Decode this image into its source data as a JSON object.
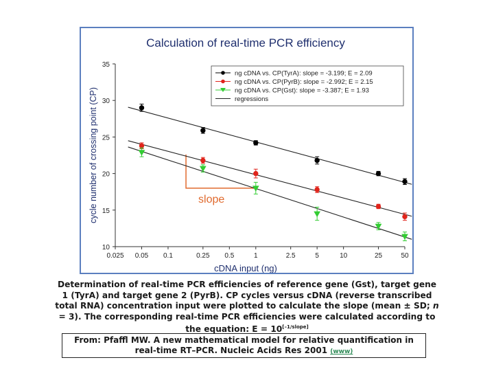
{
  "chart_data": {
    "type": "scatter",
    "title": "Calculation of real-time PCR efficiency",
    "xlabel": "cDNA input (ng)",
    "ylabel": "cycle number of crossing point (CP)",
    "x_scale": "log",
    "xlim": [
      0.025,
      50
    ],
    "ylim": [
      10,
      35
    ],
    "x_tick_labels": [
      "0.025",
      "0.05",
      "0.1",
      "0.25",
      "0.5",
      "1",
      "2.5",
      "5",
      "10",
      "25",
      "50"
    ],
    "y_tick_labels": [
      "10",
      "15",
      "20",
      "25",
      "30",
      "35"
    ],
    "legend_position": "top-right",
    "series": [
      {
        "name": "ng cDNA vs. CP(TyrA): slope = -3.199; E = 2.09",
        "color": "#000000",
        "marker": "circle",
        "x": [
          0.05,
          0.25,
          1,
          5,
          25,
          50
        ],
        "y": [
          29.0,
          25.9,
          24.2,
          21.8,
          20.0,
          18.9
        ],
        "err": [
          0.5,
          0.4,
          0.3,
          0.5,
          0.3,
          0.4
        ]
      },
      {
        "name": "ng cDNA vs. CP(PyrB): slope = -2.992; E = 2.15",
        "color": "#e0241b",
        "marker": "circle",
        "x": [
          0.05,
          0.25,
          1,
          5,
          25,
          50
        ],
        "y": [
          23.8,
          21.8,
          20.0,
          17.8,
          15.5,
          14.1
        ],
        "err": [
          0.4,
          0.4,
          0.6,
          0.4,
          0.3,
          0.5
        ]
      },
      {
        "name": "ng cDNA vs. CP(Gst): slope = -3.387; E = 1.93",
        "color": "#33cc33",
        "marker": "triangle-down",
        "x": [
          0.05,
          0.25,
          1,
          5,
          25,
          50
        ],
        "y": [
          22.9,
          20.7,
          18.0,
          14.5,
          12.8,
          11.4
        ],
        "err": [
          0.6,
          0.5,
          0.8,
          0.9,
          0.5,
          0.6
        ]
      }
    ],
    "regression_label": "regressions",
    "annotation": {
      "text": "slope",
      "color": "#e06a2e",
      "triangle": {
        "x_start": 0.16,
        "x_end": 1,
        "y_start": 22.6,
        "y_end": 18.0
      }
    }
  },
  "caption": {
    "part1": "Determination of real-time PCR efficiencies of reference gene (Gst), target gene 1 (TyrA) and target gene 2 (PyrB). CP cycles versus cDNA (reverse transcribed total RNA) concentration input were plotted to calculate the slope (mean ± SD; ",
    "n_italic": "n",
    "part2": " = 3). The corresponding real-time PCR efficiencies were calculated according to the equation: E = 10",
    "exponent": "[–1/slope]"
  },
  "citation": {
    "text": "From: Pfaffl MW. A new mathematical model for relative quantification in real-time RT–PCR. Nucleic Acids Res 2001 ",
    "link_text": "(www)"
  }
}
